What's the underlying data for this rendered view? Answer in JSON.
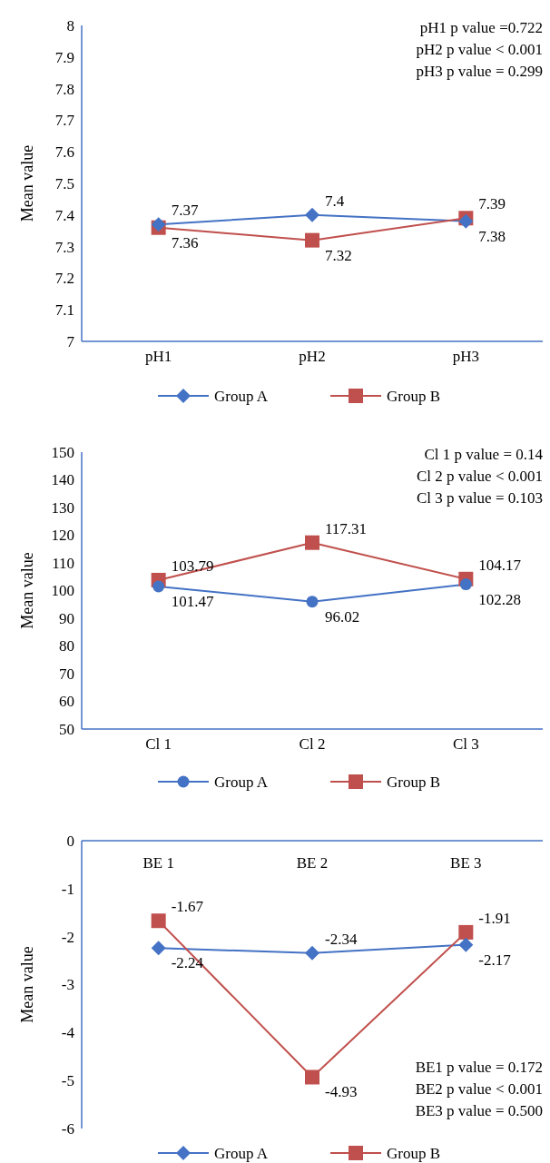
{
  "chart_data": [
    {
      "type": "line",
      "ylabel": "Mean value",
      "categories": [
        "pH1",
        "pH2",
        "pH3"
      ],
      "ylim": [
        7,
        8
      ],
      "yticks": [
        7,
        7.1,
        7.2,
        7.3,
        7.4,
        7.5,
        7.6,
        7.7,
        7.8,
        7.9,
        8
      ],
      "grid": false,
      "legend": "bottom",
      "data_labels": true,
      "line_style": "solid",
      "annotations": [
        "pH1 p value =0.722",
        "pH2 p value < 0.001",
        "pH3 p value = 0.299"
      ],
      "series": [
        {
          "name": "Group A",
          "color": "#4472c4",
          "marker": "diamond",
          "values": [
            7.37,
            7.4,
            7.38
          ]
        },
        {
          "name": "Group B",
          "color": "#c0504d",
          "marker": "square",
          "values": [
            7.36,
            7.32,
            7.39
          ]
        }
      ]
    },
    {
      "type": "line",
      "ylabel": "Mean value",
      "categories": [
        "Cl 1",
        "Cl 2",
        "Cl 3"
      ],
      "ylim": [
        50,
        150
      ],
      "yticks": [
        50,
        60,
        70,
        80,
        90,
        100,
        110,
        120,
        130,
        140,
        150
      ],
      "grid": false,
      "legend": "bottom",
      "data_labels": true,
      "line_style": "solid",
      "annotations": [
        "Cl 1 p value =  0.14",
        "Cl 2 p value < 0.001",
        "Cl 3 p value =  0.103"
      ],
      "series": [
        {
          "name": "Group A",
          "color": "#4472c4",
          "marker": "circle",
          "values": [
            101.47,
            96.02,
            102.28
          ]
        },
        {
          "name": "Group B",
          "color": "#c0504d",
          "marker": "square",
          "values": [
            103.79,
            117.31,
            104.17
          ]
        }
      ]
    },
    {
      "type": "line",
      "ylabel": "Mean value",
      "categories": [
        "BE 1",
        "BE 2",
        "BE 3"
      ],
      "ylim": [
        -6,
        0
      ],
      "yticks": [
        -6,
        -5,
        -4,
        -3,
        -2,
        -1,
        0
      ],
      "grid": false,
      "legend": "bottom",
      "data_labels": true,
      "line_style": "solid",
      "annotations": [
        "BE1 p value = 0.172",
        "BE2 p value < 0.001",
        "BE3 p value = 0.500"
      ],
      "series": [
        {
          "name": "Group A",
          "color": "#4472c4",
          "marker": "diamond",
          "values": [
            -2.24,
            -2.34,
            -2.17
          ]
        },
        {
          "name": "Group B",
          "color": "#c0504d",
          "marker": "square",
          "values": [
            -1.67,
            -4.93,
            -1.91
          ]
        }
      ]
    }
  ]
}
